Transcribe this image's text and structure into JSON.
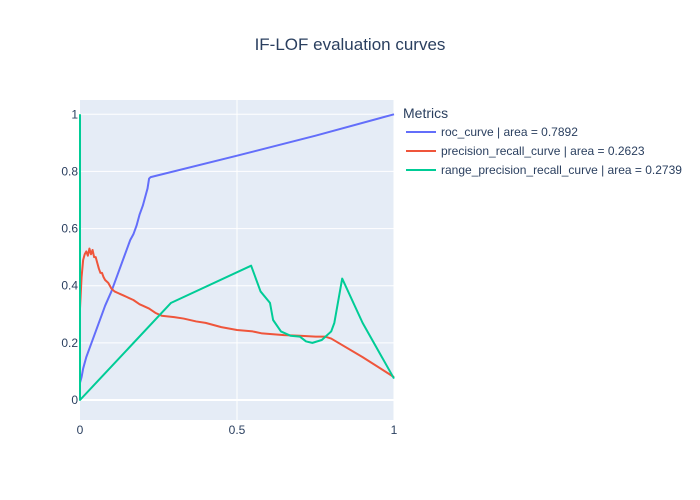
{
  "chart_data": {
    "type": "line",
    "title": "IF-LOF evaluation curves",
    "xlabel": "",
    "ylabel": "",
    "xlim": [
      0,
      1
    ],
    "ylim": [
      -0.07,
      1.05
    ],
    "x_ticks": [
      0,
      0.5,
      1
    ],
    "x_tick_labels": [
      "0",
      "0.5",
      "1"
    ],
    "y_ticks": [
      0,
      0.2,
      0.4,
      0.6,
      0.8,
      1
    ],
    "y_tick_labels": [
      "0",
      "0.2",
      "0.4",
      "0.6",
      "0.8",
      "1"
    ],
    "grid": true,
    "plot_background": "#e5ecf6",
    "legend": {
      "title": "Metrics",
      "position": "right"
    },
    "series": [
      {
        "name": "roc_curve | area = 0.7892",
        "color": "#636efa",
        "points": [
          [
            0,
            0
          ],
          [
            0,
            0.06
          ],
          [
            0.005,
            0.08
          ],
          [
            0.01,
            0.11
          ],
          [
            0.02,
            0.15
          ],
          [
            0.03,
            0.18
          ],
          [
            0.05,
            0.24
          ],
          [
            0.07,
            0.3
          ],
          [
            0.08,
            0.33
          ],
          [
            0.1,
            0.38
          ],
          [
            0.12,
            0.44
          ],
          [
            0.14,
            0.5
          ],
          [
            0.15,
            0.53
          ],
          [
            0.16,
            0.56
          ],
          [
            0.17,
            0.58
          ],
          [
            0.18,
            0.61
          ],
          [
            0.19,
            0.65
          ],
          [
            0.2,
            0.68
          ],
          [
            0.21,
            0.72
          ],
          [
            0.215,
            0.74
          ],
          [
            0.22,
            0.775
          ],
          [
            0.225,
            0.78
          ],
          [
            0.5,
            0.855
          ],
          [
            0.75,
            0.925
          ],
          [
            1,
            1
          ]
        ]
      },
      {
        "name": "precision_recall_curve | area = 0.2623",
        "color": "#ef553b",
        "points": [
          [
            0,
            0.32
          ],
          [
            0.005,
            0.43
          ],
          [
            0.01,
            0.49
          ],
          [
            0.015,
            0.51
          ],
          [
            0.02,
            0.52
          ],
          [
            0.025,
            0.505
          ],
          [
            0.03,
            0.53
          ],
          [
            0.035,
            0.51
          ],
          [
            0.04,
            0.525
          ],
          [
            0.045,
            0.5
          ],
          [
            0.05,
            0.5
          ],
          [
            0.055,
            0.48
          ],
          [
            0.06,
            0.46
          ],
          [
            0.065,
            0.445
          ],
          [
            0.07,
            0.445
          ],
          [
            0.075,
            0.43
          ],
          [
            0.08,
            0.42
          ],
          [
            0.09,
            0.41
          ],
          [
            0.1,
            0.39
          ],
          [
            0.11,
            0.38
          ],
          [
            0.12,
            0.375
          ],
          [
            0.13,
            0.37
          ],
          [
            0.14,
            0.365
          ],
          [
            0.15,
            0.36
          ],
          [
            0.17,
            0.35
          ],
          [
            0.19,
            0.335
          ],
          [
            0.2,
            0.33
          ],
          [
            0.22,
            0.32
          ],
          [
            0.24,
            0.305
          ],
          [
            0.26,
            0.295
          ],
          [
            0.3,
            0.29
          ],
          [
            0.33,
            0.285
          ],
          [
            0.37,
            0.275
          ],
          [
            0.4,
            0.27
          ],
          [
            0.45,
            0.255
          ],
          [
            0.5,
            0.245
          ],
          [
            0.55,
            0.24
          ],
          [
            0.58,
            0.233
          ],
          [
            0.65,
            0.227
          ],
          [
            0.7,
            0.225
          ],
          [
            0.75,
            0.222
          ],
          [
            0.78,
            0.222
          ],
          [
            0.8,
            0.215
          ],
          [
            0.9,
            0.15
          ],
          [
            1,
            0.08
          ]
        ]
      },
      {
        "name": "range_precision_recall_curve | area = 0.2739",
        "color": "#00cc96",
        "points": [
          [
            0,
            1
          ],
          [
            0,
            0.6
          ],
          [
            0,
            0
          ],
          [
            0.29,
            0.34
          ],
          [
            0.545,
            0.47
          ],
          [
            0.575,
            0.38
          ],
          [
            0.605,
            0.34
          ],
          [
            0.615,
            0.28
          ],
          [
            0.64,
            0.24
          ],
          [
            0.67,
            0.225
          ],
          [
            0.7,
            0.222
          ],
          [
            0.72,
            0.205
          ],
          [
            0.74,
            0.2
          ],
          [
            0.77,
            0.21
          ],
          [
            0.8,
            0.24
          ],
          [
            0.81,
            0.27
          ],
          [
            0.835,
            0.425
          ],
          [
            0.9,
            0.27
          ],
          [
            1,
            0.075
          ]
        ]
      }
    ]
  }
}
